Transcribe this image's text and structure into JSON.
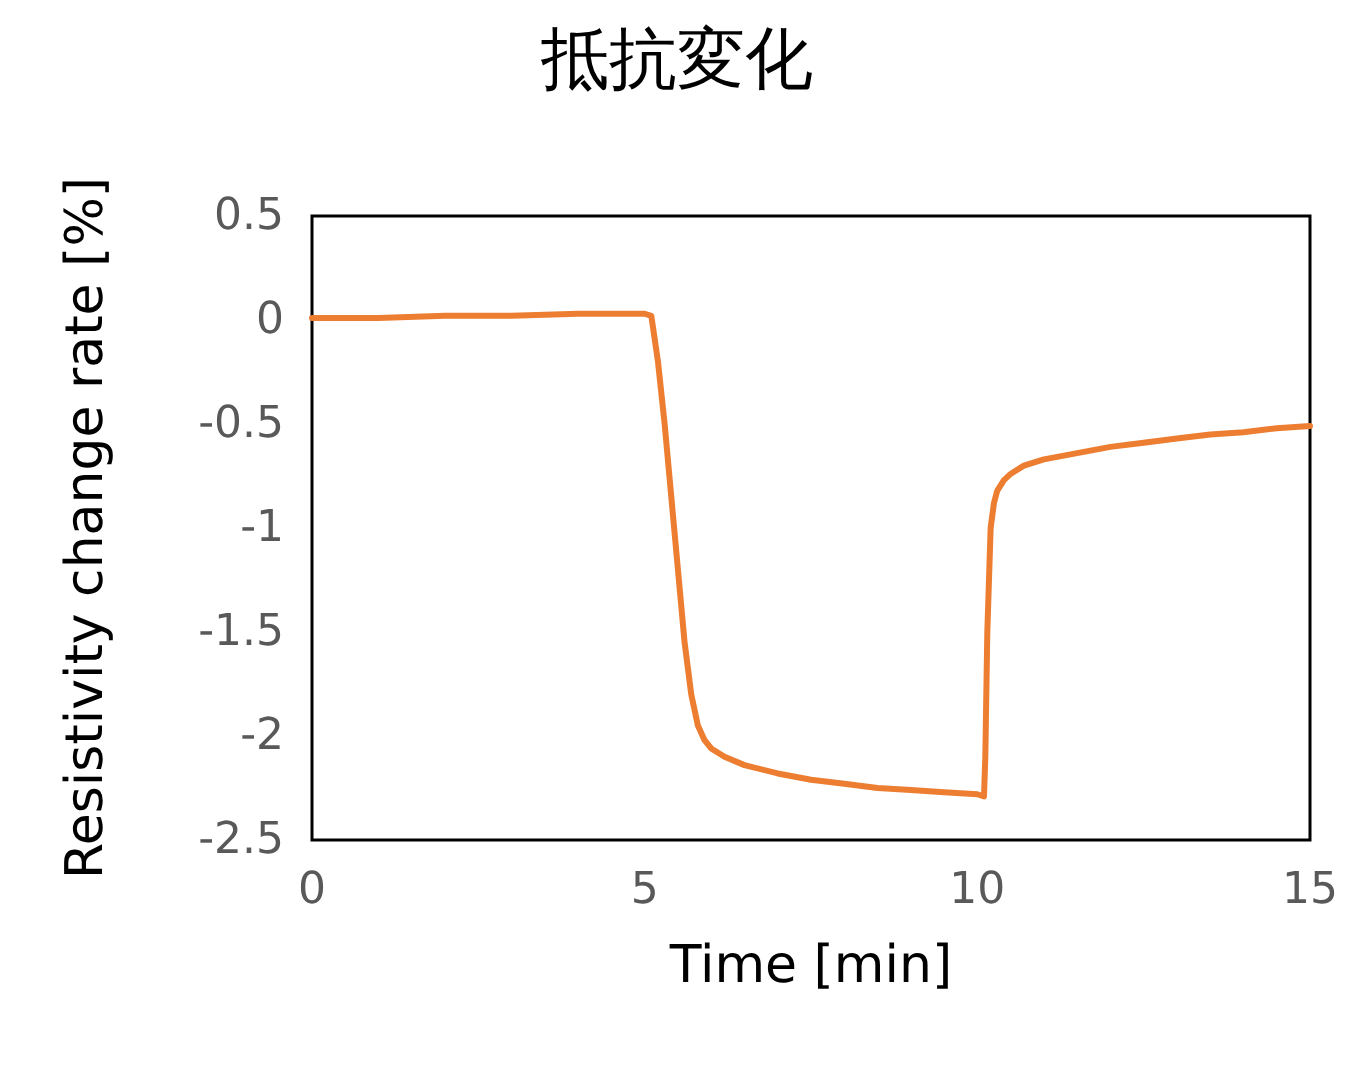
{
  "chart_data": {
    "type": "line",
    "title": "抵抗変化",
    "xlabel": "Time [min]",
    "ylabel": "Resistivity change rate [%]",
    "series": [
      {
        "color": "#ed7d31",
        "x": [
          0,
          1,
          2,
          3,
          4,
          5,
          5.1,
          5.2,
          5.3,
          5.4,
          5.5,
          5.6,
          5.7,
          5.8,
          5.9,
          6.0,
          6.2,
          6.5,
          7,
          7.5,
          8,
          8.5,
          9,
          9.5,
          10,
          10.1,
          10.12,
          10.15,
          10.2,
          10.25,
          10.3,
          10.4,
          10.5,
          10.7,
          11,
          11.5,
          12,
          12.5,
          13,
          13.5,
          14,
          14.5,
          15
        ],
        "values": [
          0.01,
          0.01,
          0.02,
          0.02,
          0.03,
          0.03,
          0.02,
          -0.2,
          -0.5,
          -0.85,
          -1.2,
          -1.55,
          -1.8,
          -1.95,
          -2.02,
          -2.06,
          -2.1,
          -2.14,
          -2.18,
          -2.21,
          -2.23,
          -2.25,
          -2.26,
          -2.27,
          -2.28,
          -2.29,
          -2.1,
          -1.5,
          -1.0,
          -0.88,
          -0.82,
          -0.77,
          -0.74,
          -0.7,
          -0.67,
          -0.64,
          -0.61,
          -0.59,
          -0.57,
          -0.55,
          -0.54,
          -0.52,
          -0.51
        ]
      }
    ],
    "xlim": [
      0,
      15
    ],
    "xticks": [
      0,
      5,
      10,
      15
    ],
    "ylim": [
      -2.5,
      0.5
    ],
    "yticks": [
      -2.5,
      -2,
      -1.5,
      -1,
      -0.5,
      0,
      0.5
    ],
    "grid": false,
    "marker": "none",
    "line_style": "solid"
  }
}
